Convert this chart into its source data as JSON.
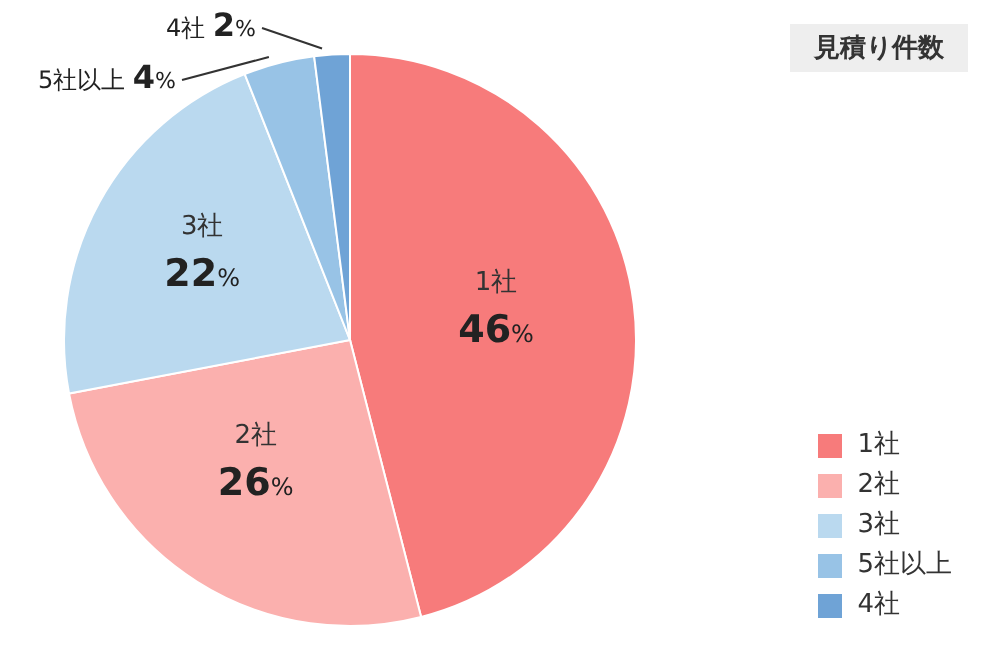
{
  "chart_data": {
    "type": "pie",
    "title": "見積り件数",
    "categories": [
      "1社",
      "2社",
      "3社",
      "5社以上",
      "4社"
    ],
    "values": [
      46,
      26,
      22,
      4,
      2
    ],
    "value_labels": [
      "46%",
      "26%",
      "22%",
      "4%",
      "2%"
    ],
    "colors": [
      "#f77b7b",
      "#fbb0ae",
      "#bad9ef",
      "#98c3e6",
      "#6fa3d6"
    ],
    "legend": "bottom right"
  }
}
